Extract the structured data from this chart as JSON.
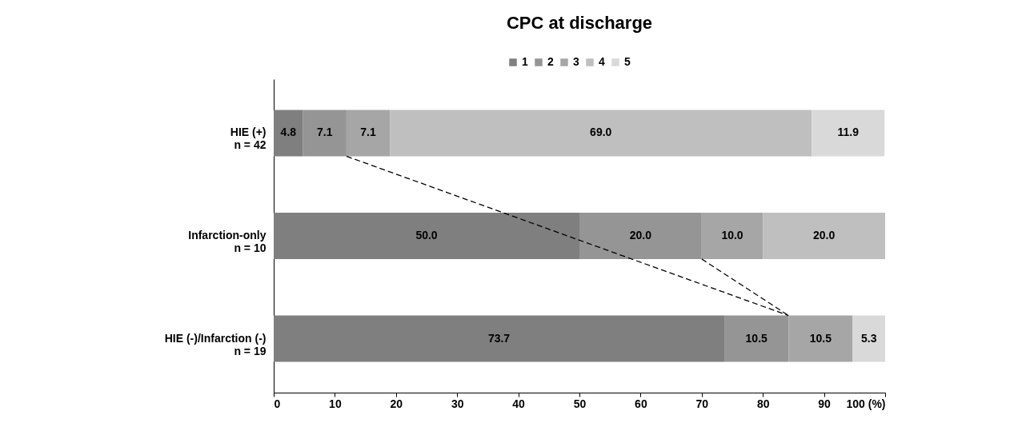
{
  "chart_data": {
    "type": "bar",
    "title": "CPC at discharge",
    "orientation": "horizontal",
    "stacked": true,
    "grid": false,
    "legend": "top",
    "categories": [
      "HIE (+)\nn = 42",
      "Infarction-only\nn = 10",
      "HIE (-)/Infarction (-)\nn = 19"
    ],
    "series": [
      {
        "name": "1",
        "color": "#7f7f7f",
        "values": [
          4.8,
          50.0,
          73.7
        ],
        "value_labels": [
          "4.8",
          "50.0",
          "73.7"
        ]
      },
      {
        "name": "2",
        "color": "#959595",
        "values": [
          7.1,
          20.0,
          10.5
        ],
        "value_labels": [
          "7.1",
          "20.0",
          "10.5"
        ]
      },
      {
        "name": "3",
        "color": "#a6a6a6",
        "values": [
          7.1,
          10.0,
          10.5
        ],
        "value_labels": [
          "7.1",
          "10.0",
          "10.5"
        ]
      },
      {
        "name": "4",
        "color": "#bfbfbf",
        "values": [
          69.0,
          20.0,
          null
        ],
        "value_labels": [
          "69.0",
          "20.0",
          null
        ]
      },
      {
        "name": "5",
        "color": "#d9d9d9",
        "values": [
          11.9,
          null,
          5.3
        ],
        "value_labels": [
          "11.9",
          null,
          "5.3"
        ]
      }
    ],
    "xlim": [
      0,
      100
    ],
    "xticks": [
      0,
      10,
      20,
      30,
      40,
      50,
      60,
      70,
      80,
      90,
      {
        "value": 100,
        "label": "100 (%)"
      }
    ]
  }
}
